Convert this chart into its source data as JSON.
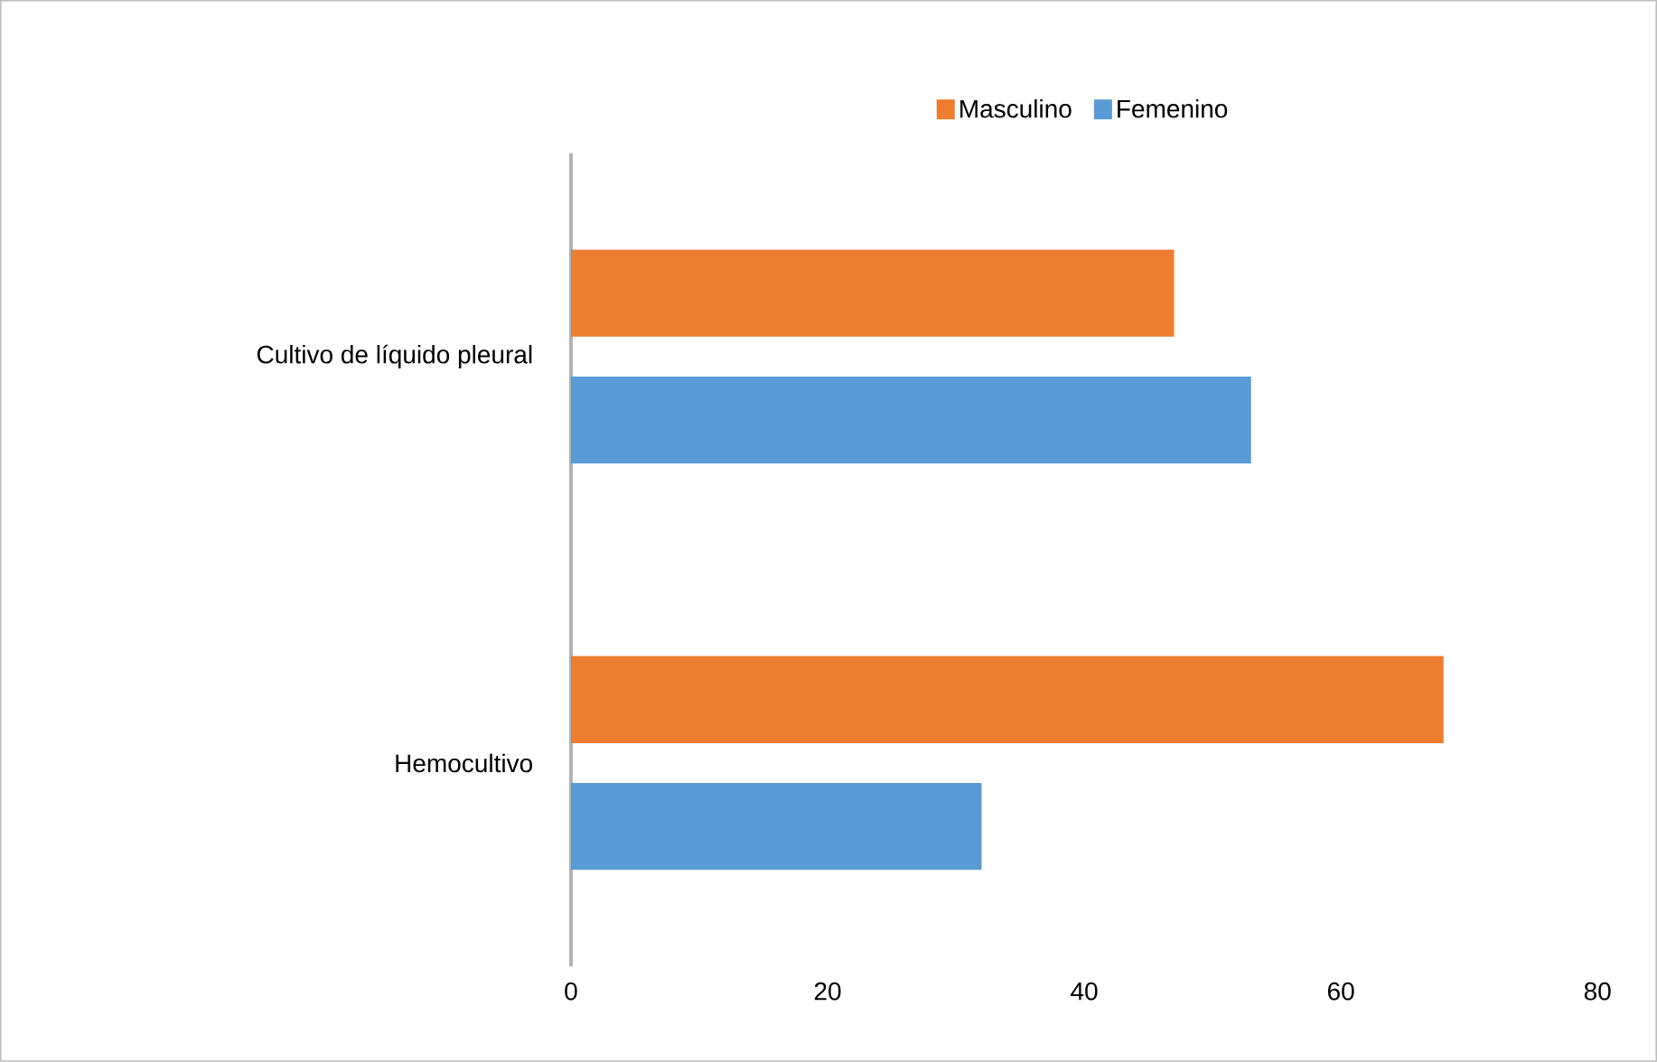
{
  "chart_data": {
    "type": "bar",
    "orientation": "horizontal",
    "categories": [
      "Cultivo de líquido pleural",
      "Hemocultivo"
    ],
    "series": [
      {
        "name": "Masculino",
        "color": "#ed7d31",
        "values": [
          47,
          68
        ]
      },
      {
        "name": "Femenino",
        "color": "#5b9bd5",
        "values": [
          53,
          32
        ]
      }
    ],
    "xlim": [
      0,
      80
    ],
    "xticks": [
      0,
      20,
      40,
      60,
      80
    ],
    "legend": "top",
    "grid": false
  }
}
